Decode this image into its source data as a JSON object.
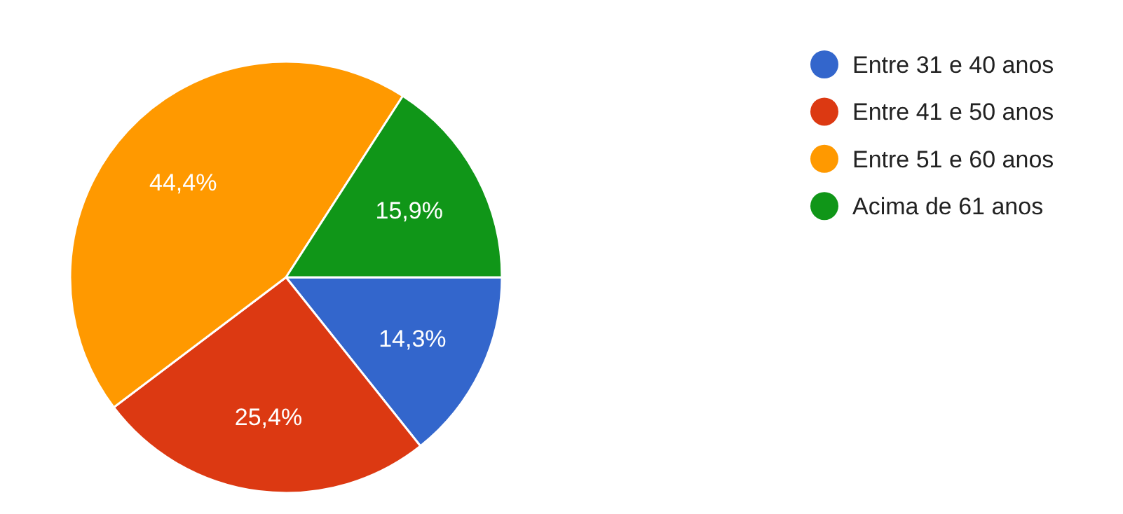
{
  "chart_data": {
    "type": "pie",
    "categories": [
      "Entre 31 e 40 anos",
      "Entre 41 e 50 anos",
      "Entre 51 e 60 anos",
      "Acima de 61 anos"
    ],
    "values": [
      14.3,
      25.4,
      44.4,
      15.9
    ],
    "colors": [
      "#3366cc",
      "#dc3912",
      "#ff9900",
      "#109618"
    ],
    "value_labels": [
      "14,3%",
      "25,4%",
      "44,4%",
      "15,9%"
    ],
    "legend": "right"
  }
}
